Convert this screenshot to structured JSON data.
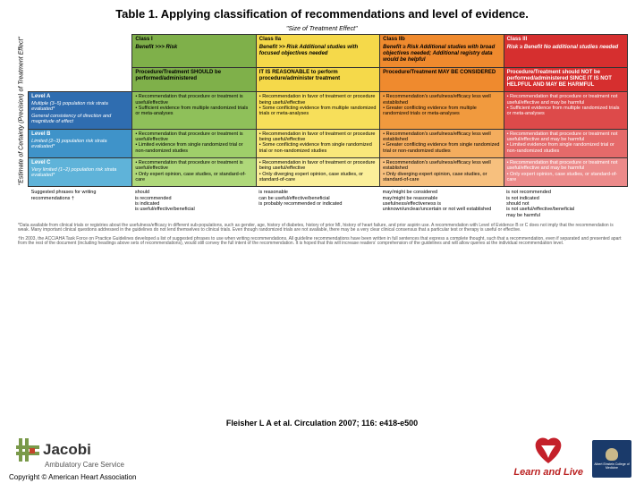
{
  "title": "Table 1. Applying classification of recommendations and level of evidence.",
  "axes": {
    "top": "\"Size of Treatment Effect\"",
    "left": "\"Estimate of Certainty (Precision) of Treatment Effect\""
  },
  "colors": {
    "classI": "#7fb04a",
    "classIIa": "#f5d94a",
    "classIIb": "#ef8a2e",
    "classIII": "#d62f2f",
    "levelA": "#2f6db0",
    "levelB": "#3f93c9",
    "levelC": "#5fb3d9",
    "cellIA": "#8fc05a",
    "cellIB": "#9fcf6a",
    "cellIC": "#afd87a",
    "cellIIaA": "#f7df5a",
    "cellIIaB": "#f9e77a",
    "cellIIaC": "#fbef9a",
    "cellIIbA": "#f19a3e",
    "cellIIbB": "#f4ad5e",
    "cellIIbC": "#f7c07e",
    "cellIIIA": "#dd4a4a",
    "cellIIIB": "#e56a6a",
    "cellIIIC": "#ec8a8a"
  },
  "col_widths": {
    "axis": "2%",
    "rowhdr": "17%",
    "col": "20.25%"
  },
  "headers": {
    "classI": {
      "label": "Class I",
      "benefit": "Benefit >>> Risk",
      "action": "Procedure/Treatment SHOULD be performed/administered"
    },
    "classIIa": {
      "label": "Class IIa",
      "benefit": "Benefit >> Risk Additional studies with focused objectives needed",
      "action": "IT IS REASONABLE to perform procedure/administer treatment"
    },
    "classIIb": {
      "label": "Class IIb",
      "benefit": "Benefit ≥ Risk Additional studies with broad objectives needed; Additional registry data would be helpful",
      "action": "Procedure/Treatment MAY BE CONSIDERED"
    },
    "classIII": {
      "label": "Class III",
      "benefit": "Risk ≥ Benefit No additional studies needed",
      "action": "Procedure/Treatment should NOT be performed/administered SINCE IT IS NOT HELPFUL AND MAY BE HARMFUL"
    }
  },
  "rows": {
    "A": {
      "label": "Level A",
      "sub1": "Multiple (3–5) population risk strata evaluated*",
      "sub2": "General consistency of direction and magnitude of effect"
    },
    "B": {
      "label": "Level B",
      "sub1": "Limited (2–3) population risk strata evaluated*"
    },
    "C": {
      "label": "Level C",
      "sub1": "Very limited (1–2) population risk strata evaluated*"
    }
  },
  "cells": {
    "IA": {
      "b1": "• Recommendation that procedure or treatment is useful/effective",
      "b2": "• Sufficient evidence from multiple randomized trials or meta-analyses"
    },
    "IIaA": {
      "b1": "• Recommendation in favor of treatment or procedure being useful/effective",
      "b2": "• Some conflicting evidence from multiple randomized trials or meta-analyses"
    },
    "IIbA": {
      "b1": "• Recommendation's usefulness/efficacy less well established",
      "b2": "• Greater conflicting evidence from multiple randomized trials or meta-analyses"
    },
    "IIIA": {
      "b1": "• Recommendation that procedure or treatment not useful/effective and may be harmful",
      "b2": "• Sufficient evidence from multiple randomized trials or meta-analyses"
    },
    "IB": {
      "b1": "• Recommendation that procedure or treatment is useful/effective",
      "b2": "• Limited evidence from single randomized trial or non-randomized studies"
    },
    "IIaB": {
      "b1": "• Recommendation in favor of treatment or procedure being useful/effective",
      "b2": "• Some conflicting evidence from single randomized trial or non-randomized studies"
    },
    "IIbB": {
      "b1": "• Recommendation's usefulness/efficacy less well established",
      "b2": "• Greater conflicting evidence from single randomized trial or non-randomized studies"
    },
    "IIIB": {
      "b1": "• Recommendation that procedure or treatment not useful/effective and may be harmful",
      "b2": "• Limited evidence from single randomized trial or non-randomized studies"
    },
    "IC": {
      "b1": "• Recommendation that procedure or treatment is useful/effective",
      "b2": "• Only expert opinion, case studies, or standard-of-care"
    },
    "IIaC": {
      "b1": "• Recommendation in favor of treatment or procedure being useful/effective",
      "b2": "• Only diverging expert opinion, case studies, or standard-of-care"
    },
    "IIbC": {
      "b1": "• Recommendation's usefulness/efficacy less well established",
      "b2": "• Only diverging expert opinion, case studies, or standard-of-care"
    },
    "IIIC": {
      "b1": "• Recommendation that procedure or treatment not useful/effective and may be harmful",
      "b2": "• Only expert opinion, case studies, or standard-of-care"
    }
  },
  "phrases": {
    "label": "Suggested phrases for writing recommendations †",
    "I": "should\nis recommended\nis indicated\nis useful/effective/beneficial",
    "IIa": "is reasonable\ncan be useful/effective/beneficial\nis probably recommended or indicated",
    "IIb": "may/might be considered\nmay/might be reasonable\nusefulness/effectiveness is unknown/unclear/uncertain or not well established",
    "III": "is not recommended\nis not indicated\nshould not\nis not useful/effective/beneficial\nmay be harmful"
  },
  "footnotes": {
    "f1": "*Data available from clinical trials or registries about the usefulness/efficacy in different sub-populations, such as gender, age, history of diabetes, history of prior MI, history of heart failure, and prior aspirin use. A recommendation with Level of Evidence B or C does not imply that the recommendation is weak. Many important clinical questions addressed in the guidelines do not lend themselves to clinical trials. Even though randomized trials are not available, there may be a very clear clinical consensus that a particular test or therapy is useful or effective.",
    "f2": "†In 2003, the ACC/AHA Task Force on Practice Guidelines developed a list of suggested phrases to use when writing recommendations. All guideline recommendations have been written in full sentences that express a complete thought, such that a recommendation, even if separated and presented apart from the rest of the document (including headings above sets of recommendations), would still convey the full intent of the recommendation. It is hoped that this will increase readers' comprehension of the guidelines and will allow queries at the individual recommendation level."
  },
  "citation": "Fleisher L A et al. Circulation 2007; 116: e418-e500",
  "jacobi": {
    "name": "Jacobi",
    "sub": "Ambulatory Care Service"
  },
  "copyright": "Copyright © American Heart Association",
  "logos": {
    "learn": "Learn and Live",
    "einstein": "Albert Einstein College of Medicine"
  }
}
